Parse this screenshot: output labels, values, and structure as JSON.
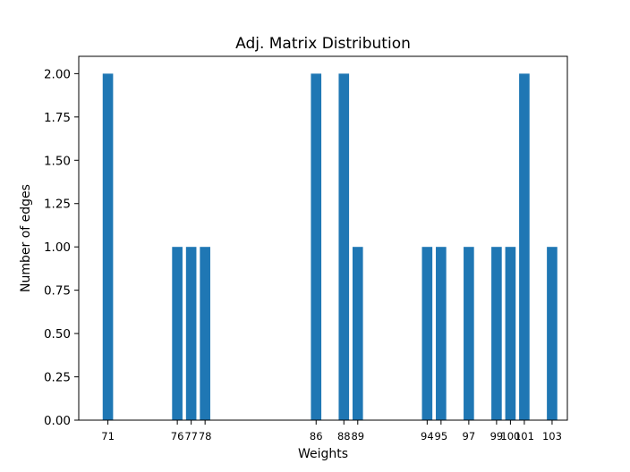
{
  "chart_data": {
    "type": "bar",
    "title": "Adj. Matrix Distribution",
    "xlabel": "Weights",
    "ylabel": "Number of edges",
    "ylim": [
      0,
      2.1
    ],
    "xlim": [
      68.9,
      104.1
    ],
    "bar_width": 0.75,
    "bar_color": "#1f77b4",
    "grid": false,
    "x": [
      71,
      76,
      77,
      78,
      86,
      88,
      89,
      94,
      95,
      97,
      99,
      100,
      101,
      103
    ],
    "values": [
      2,
      1,
      1,
      1,
      2,
      2,
      1,
      1,
      1,
      1,
      1,
      1,
      2,
      1
    ],
    "x_tick_labels": [
      "71",
      "76",
      "77",
      "78",
      "86",
      "88",
      "89",
      "94",
      "95",
      "97",
      "99",
      "100",
      "101",
      "103"
    ],
    "y_ticks": [
      0,
      0.25,
      0.5,
      0.75,
      1.0,
      1.25,
      1.5,
      1.75,
      2.0
    ],
    "y_tick_labels": [
      "0.00",
      "0.25",
      "0.50",
      "0.75",
      "1.00",
      "1.25",
      "1.50",
      "1.75",
      "2.00"
    ]
  }
}
